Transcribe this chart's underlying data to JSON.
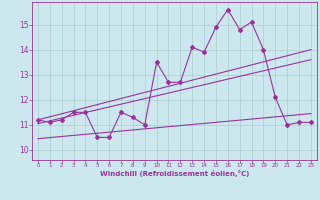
{
  "x": [
    0,
    1,
    2,
    3,
    4,
    5,
    6,
    7,
    8,
    9,
    10,
    11,
    12,
    13,
    14,
    15,
    16,
    17,
    18,
    19,
    20,
    21,
    22,
    23
  ],
  "temp": [
    11.2,
    11.1,
    11.2,
    11.5,
    11.5,
    10.5,
    10.5,
    11.5,
    11.3,
    11.0,
    13.5,
    12.7,
    12.7,
    14.1,
    13.9,
    14.9,
    15.6,
    14.8,
    15.1,
    14.0,
    12.1,
    11.0,
    11.1,
    11.1
  ],
  "line1_x": [
    0,
    23
  ],
  "line1_y": [
    11.2,
    14.0
  ],
  "line2_x": [
    0,
    23
  ],
  "line2_y": [
    11.05,
    13.6
  ],
  "line3_x": [
    0,
    23
  ],
  "line3_y": [
    10.45,
    11.45
  ],
  "color": "#993399",
  "bg_color": "#cce8ee",
  "grid_color": "#aacccc",
  "xlabel": "Windchill (Refroidissement éolien,°C)",
  "xlim": [
    -0.5,
    23.5
  ],
  "ylim": [
    9.6,
    15.9
  ],
  "yticks": [
    10,
    11,
    12,
    13,
    14,
    15
  ],
  "xticks": [
    0,
    1,
    2,
    3,
    4,
    5,
    6,
    7,
    8,
    9,
    10,
    11,
    12,
    13,
    14,
    15,
    16,
    17,
    18,
    19,
    20,
    21,
    22,
    23
  ]
}
